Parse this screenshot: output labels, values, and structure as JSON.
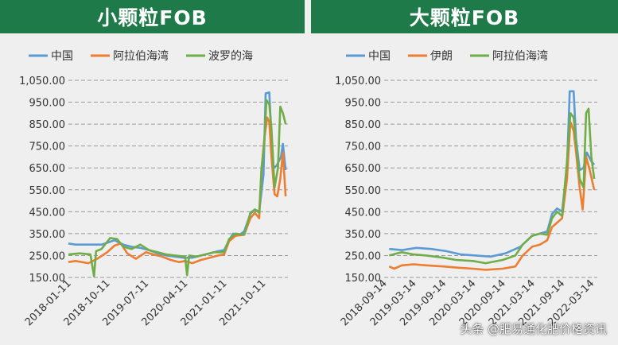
{
  "chart_data": [
    {
      "type": "line",
      "title": "小颗粒FOB",
      "ylim": [
        150,
        1050
      ],
      "yticks": [
        "1,050.00",
        "950.00",
        "850.00",
        "750.00",
        "650.00",
        "550.00",
        "450.00",
        "350.00",
        "250.00",
        "150.00"
      ],
      "xticks": [
        "2018-01-11",
        "2018-10-11",
        "2019-07-11",
        "2020-04-11",
        "2021-01-11",
        "2021-10-11"
      ],
      "grid": "horizontal-dashed",
      "legend": "top",
      "series": [
        {
          "name": "中国",
          "color": "#5b9bd5",
          "values": [
            [
              "2018-01-11",
              305
            ],
            [
              "2018-03-01",
              300
            ],
            [
              "2018-06-01",
              300
            ],
            [
              "2018-09-01",
              300
            ],
            [
              "2018-10-20",
              310
            ],
            [
              "2018-12-01",
              320
            ],
            [
              "2019-02-01",
              300
            ],
            [
              "2019-04-01",
              290
            ],
            [
              "2019-06-01",
              285
            ],
            [
              "2019-08-01",
              275
            ],
            [
              "2019-10-01",
              260
            ],
            [
              "2019-12-01",
              250
            ],
            [
              "2020-02-01",
              245
            ],
            [
              "2020-04-01",
              240
            ],
            [
              "2020-06-01",
              240
            ],
            [
              "2020-08-01",
              250
            ],
            [
              "2020-10-01",
              260
            ],
            [
              "2020-12-01",
              270
            ],
            [
              "2021-01-11",
              275
            ],
            [
              "2021-02-15",
              320
            ],
            [
              "2021-03-15",
              350
            ],
            [
              "2021-05-01",
              345
            ],
            [
              "2021-06-01",
              360
            ],
            [
              "2021-07-15",
              440
            ],
            [
              "2021-08-15",
              460
            ],
            [
              "2021-09-15",
              450
            ],
            [
              "2021-10-15",
              620
            ],
            [
              "2021-10-30",
              990
            ],
            [
              "2021-11-25",
              995
            ],
            [
              "2021-12-10",
              780
            ],
            [
              "2021-12-25",
              650
            ],
            [
              "2022-01-15",
              660
            ],
            [
              "2022-02-15",
              700
            ],
            [
              "2022-03-01",
              760
            ],
            [
              "2022-03-20",
              640
            ]
          ]
        },
        {
          "name": "阿拉伯海湾",
          "color": "#ed7d31",
          "values": [
            [
              "2018-01-11",
              220
            ],
            [
              "2018-03-01",
              225
            ],
            [
              "2018-06-01",
              215
            ],
            [
              "2018-08-01",
              235
            ],
            [
              "2018-10-11",
              265
            ],
            [
              "2018-12-01",
              295
            ],
            [
              "2019-01-15",
              305
            ],
            [
              "2019-03-01",
              260
            ],
            [
              "2019-05-01",
              235
            ],
            [
              "2019-07-11",
              265
            ],
            [
              "2019-09-01",
              255
            ],
            [
              "2019-11-01",
              245
            ],
            [
              "2020-01-01",
              230
            ],
            [
              "2020-03-01",
              220
            ],
            [
              "2020-04-11",
              225
            ],
            [
              "2020-06-01",
              215
            ],
            [
              "2020-08-01",
              230
            ],
            [
              "2020-10-01",
              240
            ],
            [
              "2020-12-01",
              250
            ],
            [
              "2021-01-11",
              255
            ],
            [
              "2021-02-15",
              315
            ],
            [
              "2021-04-01",
              340
            ],
            [
              "2021-06-01",
              345
            ],
            [
              "2021-07-15",
              420
            ],
            [
              "2021-08-15",
              445
            ],
            [
              "2021-09-15",
              420
            ],
            [
              "2021-10-01",
              640
            ],
            [
              "2021-10-20",
              780
            ],
            [
              "2021-11-10",
              880
            ],
            [
              "2021-11-25",
              860
            ],
            [
              "2021-12-10",
              700
            ],
            [
              "2022-01-01",
              530
            ],
            [
              "2022-01-20",
              520
            ],
            [
              "2022-02-10",
              600
            ],
            [
              "2022-03-01",
              720
            ],
            [
              "2022-03-20",
              520
            ]
          ]
        },
        {
          "name": "波罗的海",
          "color": "#70ad47",
          "values": [
            [
              "2018-01-11",
              255
            ],
            [
              "2018-04-01",
              260
            ],
            [
              "2018-06-15",
              255
            ],
            [
              "2018-07-10",
              155
            ],
            [
              "2018-07-25",
              270
            ],
            [
              "2018-09-01",
              280
            ],
            [
              "2018-11-01",
              330
            ],
            [
              "2018-12-20",
              325
            ],
            [
              "2019-02-01",
              290
            ],
            [
              "2019-04-01",
              280
            ],
            [
              "2019-06-01",
              300
            ],
            [
              "2019-08-01",
              275
            ],
            [
              "2019-10-01",
              265
            ],
            [
              "2019-12-01",
              255
            ],
            [
              "2020-02-01",
              250
            ],
            [
              "2020-04-11",
              245
            ],
            [
              "2020-04-25",
              160
            ],
            [
              "2020-05-10",
              250
            ],
            [
              "2020-07-01",
              245
            ],
            [
              "2020-09-01",
              255
            ],
            [
              "2020-11-01",
              265
            ],
            [
              "2021-01-11",
              265
            ],
            [
              "2021-02-15",
              325
            ],
            [
              "2021-04-01",
              350
            ],
            [
              "2021-06-01",
              345
            ],
            [
              "2021-07-15",
              445
            ],
            [
              "2021-08-15",
              460
            ],
            [
              "2021-09-15",
              445
            ],
            [
              "2021-10-01",
              650
            ],
            [
              "2021-10-20",
              760
            ],
            [
              "2021-11-05",
              960
            ],
            [
              "2021-11-25",
              940
            ],
            [
              "2021-12-10",
              830
            ],
            [
              "2022-01-01",
              560
            ],
            [
              "2022-01-25",
              650
            ],
            [
              "2022-02-10",
              930
            ],
            [
              "2022-03-01",
              900
            ],
            [
              "2022-03-20",
              850
            ]
          ]
        }
      ]
    },
    {
      "type": "line",
      "title": "大颗粒FOB",
      "ylim": [
        150,
        1050
      ],
      "yticks": [
        "1,050.00",
        "950.00",
        "850.00",
        "750.00",
        "650.00",
        "550.00",
        "450.00",
        "350.00",
        "250.00",
        "150.00"
      ],
      "xticks": [
        "2018-09-14",
        "2019-03-14",
        "2019-09-14",
        "2020-03-14",
        "2020-09-14",
        "2021-03-14",
        "2021-09-14",
        "2022-03-14"
      ],
      "grid": "horizontal-dashed",
      "legend": "top",
      "series": [
        {
          "name": "中国",
          "color": "#5b9bd5",
          "values": [
            [
              "2018-10-15",
              280
            ],
            [
              "2019-01-01",
              275
            ],
            [
              "2019-04-01",
              285
            ],
            [
              "2019-07-01",
              280
            ],
            [
              "2019-10-01",
              270
            ],
            [
              "2020-01-01",
              255
            ],
            [
              "2020-04-01",
              250
            ],
            [
              "2020-07-01",
              245
            ],
            [
              "2020-10-01",
              260
            ],
            [
              "2021-01-01",
              290
            ],
            [
              "2021-03-14",
              340
            ],
            [
              "2021-05-01",
              350
            ],
            [
              "2021-06-15",
              360
            ],
            [
              "2021-07-15",
              440
            ],
            [
              "2021-08-15",
              465
            ],
            [
              "2021-09-15",
              450
            ],
            [
              "2021-10-15",
              660
            ],
            [
              "2021-11-01",
              1000
            ],
            [
              "2021-11-25",
              1000
            ],
            [
              "2021-12-10",
              780
            ],
            [
              "2022-01-01",
              640
            ],
            [
              "2022-01-25",
              650
            ],
            [
              "2022-02-15",
              720
            ],
            [
              "2022-03-14",
              680
            ],
            [
              "2022-04-01",
              665
            ]
          ]
        },
        {
          "name": "伊朗",
          "color": "#ed7d31",
          "values": [
            [
              "2018-10-15",
              200
            ],
            [
              "2018-11-15",
              190
            ],
            [
              "2019-01-01",
              205
            ],
            [
              "2019-03-14",
              210
            ],
            [
              "2019-06-01",
              205
            ],
            [
              "2019-09-14",
              200
            ],
            [
              "2019-12-01",
              195
            ],
            [
              "2020-03-14",
              190
            ],
            [
              "2020-06-01",
              185
            ],
            [
              "2020-09-14",
              190
            ],
            [
              "2020-12-01",
              200
            ],
            [
              "2021-01-15",
              250
            ],
            [
              "2021-03-14",
              290
            ],
            [
              "2021-05-01",
              300
            ],
            [
              "2021-06-15",
              320
            ],
            [
              "2021-07-15",
              380
            ],
            [
              "2021-08-15",
              400
            ],
            [
              "2021-09-15",
              420
            ],
            [
              "2021-10-15",
              600
            ],
            [
              "2021-11-05",
              860
            ],
            [
              "2021-11-25",
              820
            ],
            [
              "2021-12-10",
              720
            ],
            [
              "2022-01-01",
              560
            ],
            [
              "2022-01-20",
              460
            ],
            [
              "2022-02-10",
              700
            ],
            [
              "2022-03-01",
              650
            ],
            [
              "2022-04-01",
              550
            ]
          ]
        },
        {
          "name": "阿拉伯海湾",
          "color": "#70ad47",
          "values": [
            [
              "2018-10-15",
              250
            ],
            [
              "2019-01-01",
              265
            ],
            [
              "2019-03-14",
              255
            ],
            [
              "2019-06-01",
              250
            ],
            [
              "2019-09-14",
              240
            ],
            [
              "2019-12-01",
              230
            ],
            [
              "2020-03-14",
              225
            ],
            [
              "2020-06-01",
              215
            ],
            [
              "2020-09-14",
              230
            ],
            [
              "2020-12-01",
              250
            ],
            [
              "2021-01-15",
              300
            ],
            [
              "2021-03-14",
              340
            ],
            [
              "2021-05-01",
              350
            ],
            [
              "2021-06-15",
              345
            ],
            [
              "2021-07-15",
              420
            ],
            [
              "2021-08-15",
              450
            ],
            [
              "2021-09-15",
              430
            ],
            [
              "2021-10-15",
              680
            ],
            [
              "2021-11-05",
              900
            ],
            [
              "2021-11-25",
              880
            ],
            [
              "2021-12-10",
              760
            ],
            [
              "2022-01-01",
              600
            ],
            [
              "2022-01-25",
              560
            ],
            [
              "2022-02-10",
              900
            ],
            [
              "2022-02-25",
              920
            ],
            [
              "2022-03-14",
              700
            ],
            [
              "2022-04-01",
              600
            ]
          ]
        }
      ]
    }
  ],
  "watermark": "头条 @肥易通化肥价格资讯"
}
